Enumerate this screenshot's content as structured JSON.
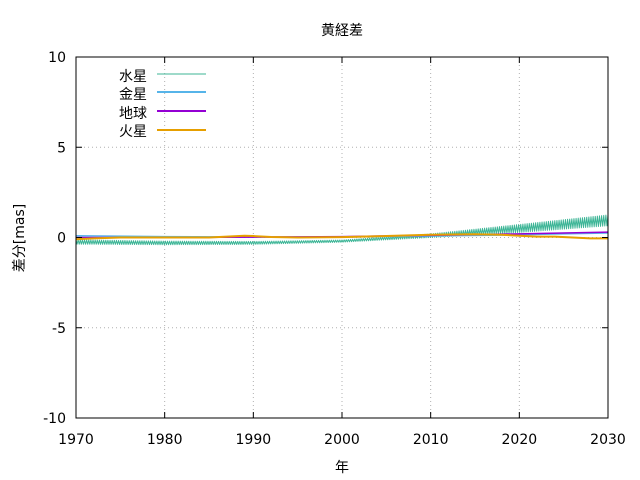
{
  "chart_data": {
    "type": "line",
    "title": "黄経差",
    "xlabel": "年",
    "ylabel": "差分[mas]",
    "xlim": [
      1970,
      2030
    ],
    "ylim": [
      -10,
      10
    ],
    "xticks": [
      "1970",
      "1980",
      "1990",
      "2000",
      "2010",
      "2020",
      "2030"
    ],
    "yticks": [
      "10",
      "5",
      "0",
      "-5",
      "-10"
    ],
    "grid": true,
    "legend_position": "top-left",
    "series": [
      {
        "name": "水星",
        "color": "#3cb596",
        "linewidth": 1,
        "oscillation_period_years": 0.24,
        "x": [
          1970,
          1980,
          1990,
          2000,
          2010,
          2020,
          2030
        ],
        "center": [
          -0.25,
          -0.3,
          -0.3,
          -0.2,
          0.1,
          0.5,
          0.95
        ],
        "amplitude": [
          0.12,
          0.1,
          0.08,
          0.06,
          0.1,
          0.22,
          0.3
        ]
      },
      {
        "name": "金星",
        "color": "#56b4e9",
        "linewidth": 1.5,
        "x": [
          1970,
          1980,
          1990,
          2000,
          2010,
          2020,
          2030
        ],
        "y": [
          0.1,
          0.05,
          0.03,
          0.03,
          0.08,
          0.15,
          0.25
        ]
      },
      {
        "name": "地球",
        "color": "#9400d3",
        "linewidth": 1.5,
        "x": [
          1970,
          1980,
          1990,
          2000,
          2010,
          2020,
          2030
        ],
        "y": [
          0.0,
          0.0,
          0.02,
          0.05,
          0.12,
          0.2,
          0.3
        ]
      },
      {
        "name": "火星",
        "color": "#e69f00",
        "linewidth": 2,
        "x": [
          1970,
          1972,
          1975,
          1980,
          1985,
          1987,
          1989,
          1990,
          1992,
          1995,
          2000,
          2005,
          2010,
          2015,
          2018,
          2020,
          2022,
          2024,
          2026,
          2028,
          2030
        ],
        "y": [
          -0.1,
          -0.05,
          0.0,
          0.0,
          0.0,
          0.05,
          0.1,
          0.08,
          0.03,
          0.0,
          0.02,
          0.08,
          0.15,
          0.18,
          0.15,
          0.1,
          0.05,
          0.05,
          0.0,
          -0.05,
          -0.05
        ]
      }
    ]
  }
}
